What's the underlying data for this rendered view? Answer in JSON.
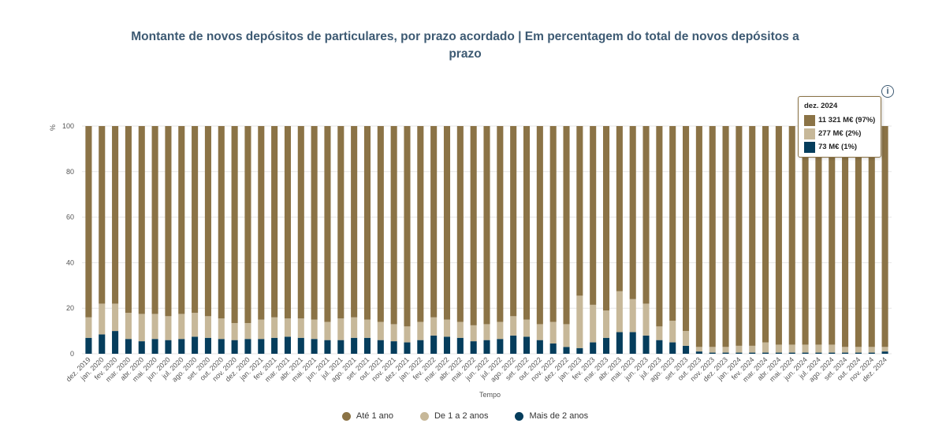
{
  "title": "Montante de novos depósitos de particulares, por prazo acordado | Em percentagem do total de novos depósitos a prazo",
  "colors": {
    "ate1": "#8b7346",
    "de1a2": "#c7b899",
    "mais2": "#053d5c"
  },
  "tooltip": {
    "title": "dez. 2024",
    "rows": [
      {
        "label": "11 321 M€ (97%)",
        "color": "#8b7346"
      },
      {
        "label": "277 M€ (2%)",
        "color": "#c7b899"
      },
      {
        "label": "73 M€ (1%)",
        "color": "#053d5c"
      }
    ]
  },
  "info_icon": "info-icon",
  "chart_data": {
    "type": "bar",
    "stacked": true,
    "ylabel": "%",
    "xlabel": "Tempo",
    "ylim": [
      0,
      100
    ],
    "yticks": [
      0,
      20,
      40,
      60,
      80,
      100
    ],
    "grid": true,
    "legend_position": "bottom",
    "categories": [
      "dez. 2019",
      "jan. 2020",
      "fev. 2020",
      "mar. 2020",
      "abr. 2020",
      "mai. 2020",
      "jun. 2020",
      "jul. 2020",
      "ago. 2020",
      "set. 2020",
      "out. 2020",
      "nov. 2020",
      "dez. 2020",
      "jan. 2021",
      "fev. 2021",
      "mar. 2021",
      "abr. 2021",
      "mai. 2021",
      "jun. 2021",
      "jul. 2021",
      "ago. 2021",
      "set. 2021",
      "out. 2021",
      "nov. 2021",
      "dez. 2021",
      "jan. 2022",
      "fev. 2022",
      "mar. 2022",
      "abr. 2022",
      "mai. 2022",
      "jun. 2022",
      "jul. 2022",
      "ago. 2022",
      "set. 2022",
      "out. 2022",
      "nov. 2022",
      "dez. 2022",
      "jan. 2023",
      "fev. 2023",
      "mar. 2023",
      "abr. 2023",
      "mai. 2023",
      "jun. 2023",
      "jul. 2023",
      "ago. 2023",
      "set. 2023",
      "out. 2023",
      "nov. 2023",
      "dez. 2023",
      "jan. 2024",
      "fev. 2024",
      "mar. 2024",
      "abr. 2024",
      "mai. 2024",
      "jun. 2024",
      "jul. 2024",
      "ago. 2024",
      "set. 2024",
      "out. 2024",
      "nov. 2024",
      "dez. 2024"
    ],
    "series": [
      {
        "name": "Mais de 2 anos",
        "values": [
          7,
          8.5,
          10,
          6.5,
          5.5,
          6.5,
          6,
          6.5,
          7.5,
          7,
          6.5,
          6,
          6.5,
          6.5,
          7,
          7.5,
          7,
          6.5,
          6,
          6,
          7,
          7,
          6,
          5.5,
          5,
          6,
          8,
          7.5,
          7,
          5.5,
          6,
          6.5,
          8,
          7.5,
          6,
          4.5,
          3,
          2.5,
          5,
          7,
          9.5,
          9.5,
          8,
          6,
          5,
          3.5,
          1,
          0.5,
          0.5,
          0.5,
          0.5,
          0.5,
          0.5,
          0.5,
          0.5,
          0.5,
          0.5,
          0.5,
          0.5,
          0.5,
          1
        ]
      },
      {
        "name": "De 1 a 2 anos",
        "values": [
          9,
          13.5,
          12,
          11.5,
          12,
          11,
          10.5,
          11,
          10.5,
          9.5,
          9,
          7.5,
          7,
          8.5,
          9,
          8,
          8.5,
          8.5,
          8,
          9.5,
          9,
          8,
          8,
          7.5,
          7,
          8,
          8,
          7.5,
          7,
          7,
          7,
          7.5,
          8.5,
          7.5,
          7,
          9.5,
          10,
          23,
          16.5,
          12,
          18,
          14.5,
          14,
          6,
          9.5,
          6.5,
          2,
          2.5,
          2.5,
          3,
          3,
          4.5,
          3.5,
          3.5,
          3.5,
          3.5,
          3.5,
          2.5,
          2.5,
          2.5,
          2
        ]
      },
      {
        "name": "Até 1 ano",
        "values": [
          84,
          78,
          78,
          82,
          82.5,
          82.5,
          83.5,
          82.5,
          82,
          83.5,
          84.5,
          86.5,
          86.5,
          85,
          84,
          84.5,
          84.5,
          85,
          86,
          84.5,
          84,
          85,
          86,
          87,
          88,
          86,
          84,
          85,
          86,
          87.5,
          87,
          86,
          83.5,
          85,
          87,
          86,
          87,
          74.5,
          78.5,
          81,
          72.5,
          76,
          78,
          88,
          85.5,
          90,
          97,
          97,
          97,
          96.5,
          96.5,
          95,
          96,
          96,
          96,
          96,
          96,
          97,
          97,
          97,
          97
        ]
      }
    ]
  }
}
